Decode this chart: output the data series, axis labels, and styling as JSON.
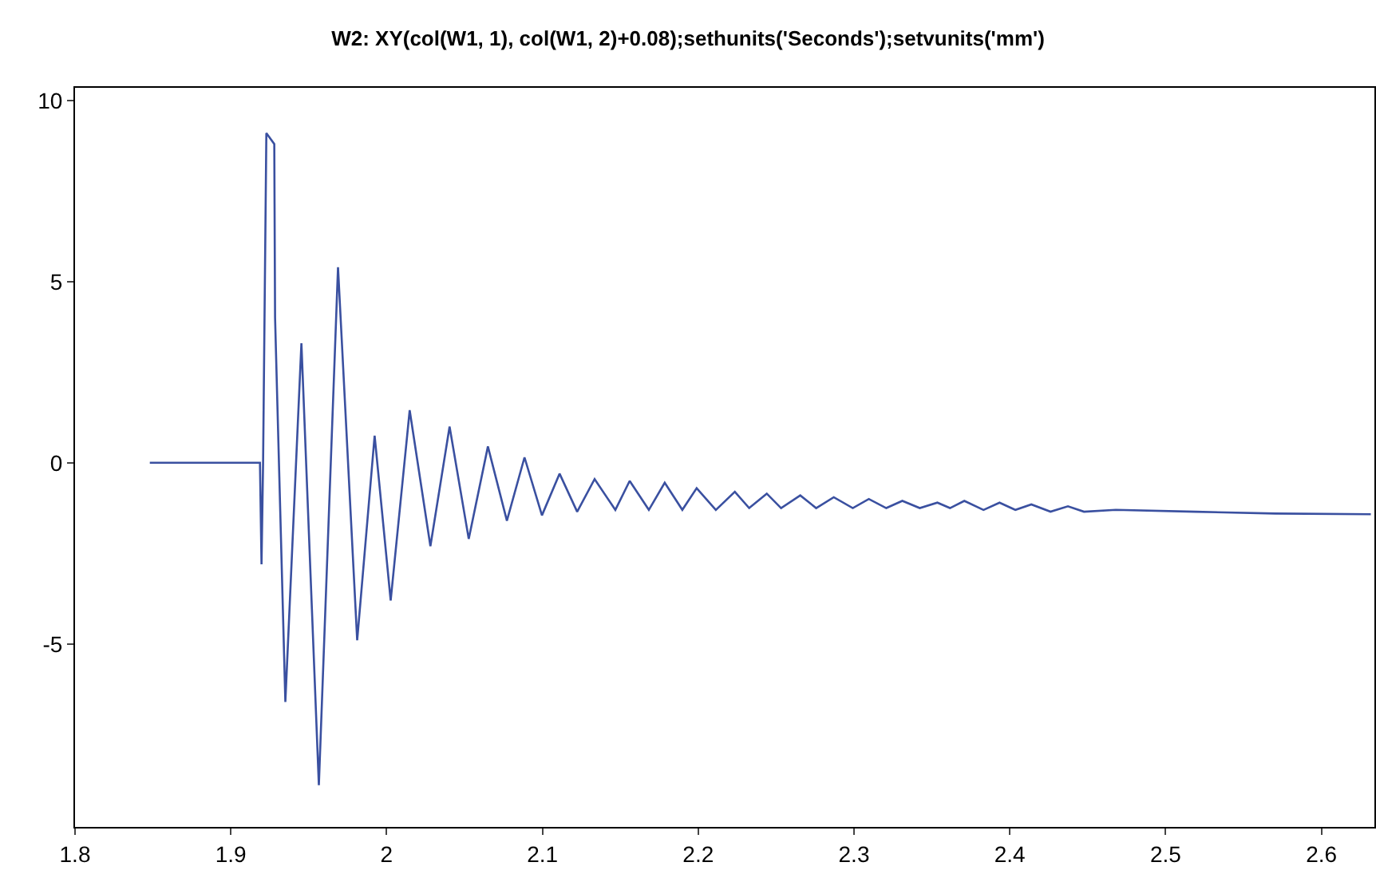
{
  "chart_data": {
    "type": "line",
    "title": "W2: XY(col(W1, 1), col(W1, 2)+0.08);sethunits('Seconds');setvunits('mm')",
    "x": [
      1.848,
      1.9187,
      1.9197,
      1.9207,
      1.9228,
      1.9279,
      1.9284,
      1.935,
      1.9453,
      1.9565,
      1.9688,
      1.9811,
      1.9923,
      2.0026,
      2.0148,
      2.0281,
      2.0404,
      2.0527,
      2.065,
      2.0772,
      2.0885,
      2.0997,
      2.111,
      2.1223,
      2.1335,
      2.1468,
      2.156,
      2.1683,
      2.1785,
      2.1898,
      2.199,
      2.2113,
      2.2235,
      2.2327,
      2.244,
      2.2532,
      2.2655,
      2.2757,
      2.287,
      2.2992,
      2.3095,
      2.3207,
      2.331,
      2.3422,
      2.3535,
      2.3616,
      2.3708,
      2.3831,
      2.3934,
      2.4036,
      2.4138,
      2.4261,
      2.4373,
      2.4476,
      2.468,
      2.5192,
      2.5703,
      2.6317
    ],
    "series": [
      {
        "color": "#3a50a0",
        "values": [
          0,
          0,
          -2.8,
          0,
          9.1,
          8.8,
          4,
          -6.6,
          3.3,
          -8.9,
          5.4,
          -4.9,
          0.75,
          -3.8,
          1.45,
          -2.3,
          1.0,
          -2.1,
          0.45,
          -1.6,
          0.15,
          -1.45,
          -0.3,
          -1.35,
          -0.45,
          -1.3,
          -0.5,
          -1.3,
          -0.55,
          -1.3,
          -0.7,
          -1.3,
          -0.8,
          -1.25,
          -0.85,
          -1.25,
          -0.9,
          -1.25,
          -0.95,
          -1.25,
          -1.0,
          -1.25,
          -1.05,
          -1.25,
          -1.1,
          -1.25,
          -1.05,
          -1.3,
          -1.1,
          -1.3,
          -1.15,
          -1.35,
          -1.2,
          -1.35,
          -1.3,
          -1.35,
          -1.4,
          -1.42
        ]
      }
    ],
    "xlim": [
      1.8,
      2.634
    ],
    "ylim": [
      -10.05,
      10.35
    ],
    "xticks": [
      1.8,
      1.9,
      2,
      2.1,
      2.2,
      2.3,
      2.4,
      2.5,
      2.6
    ],
    "yticks": [
      -5,
      0,
      5,
      10
    ],
    "grid": false,
    "legend": false,
    "marker": "none",
    "line_style": "solid"
  }
}
